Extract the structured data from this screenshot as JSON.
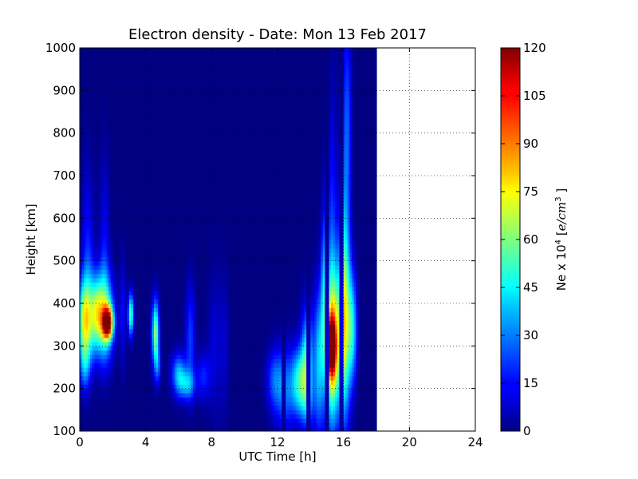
{
  "chart_data": {
    "type": "heatmap",
    "title": "Electron density - Date: Mon 13 Feb 2017",
    "xlabel": "UTC Time [h]",
    "ylabel": "Height [km]",
    "xlim": [
      0,
      24
    ],
    "ylim": [
      100,
      1000
    ],
    "x_ticks": [
      0,
      4,
      8,
      12,
      16,
      20,
      24
    ],
    "y_ticks": [
      100,
      200,
      300,
      400,
      500,
      600,
      700,
      800,
      900,
      1000
    ],
    "data_extent_x": [
      0,
      18
    ],
    "grid": true,
    "colormap": "jet",
    "colorbar": {
      "label_prefix": "Ne x 10",
      "label_exponent": "4",
      "label_units_open": "[",
      "label_units": "e/cm",
      "label_units_exponent": "3",
      "label_units_close": "]",
      "range": [
        0,
        120
      ],
      "ticks": [
        0,
        15,
        30,
        45,
        60,
        75,
        90,
        105,
        120
      ]
    },
    "density_blobs": [
      {
        "t": 0.35,
        "h": 360,
        "dt": 0.35,
        "dh": 70,
        "ne": 70
      },
      {
        "t": 0.5,
        "h": 500,
        "dt": 0.25,
        "dh": 150,
        "ne": 18
      },
      {
        "t": 1.05,
        "h": 380,
        "dt": 0.25,
        "dh": 60,
        "ne": 48
      },
      {
        "t": 1.7,
        "h": 355,
        "dt": 0.22,
        "dh": 25,
        "ne": 100
      },
      {
        "t": 1.55,
        "h": 370,
        "dt": 0.35,
        "dh": 70,
        "ne": 55
      },
      {
        "t": 1.5,
        "h": 520,
        "dt": 0.2,
        "dh": 150,
        "ne": 15
      },
      {
        "t": 0.3,
        "h": 250,
        "dt": 0.2,
        "dh": 40,
        "ne": 20
      },
      {
        "t": 2.6,
        "h": 380,
        "dt": 0.12,
        "dh": 90,
        "ne": 15
      },
      {
        "t": 3.1,
        "h": 375,
        "dt": 0.12,
        "dh": 35,
        "ne": 55
      },
      {
        "t": 4.6,
        "h": 330,
        "dt": 0.15,
        "dh": 55,
        "ne": 62
      },
      {
        "t": 4.75,
        "h": 250,
        "dt": 0.12,
        "dh": 30,
        "ne": 20
      },
      {
        "t": 6.0,
        "h": 235,
        "dt": 0.3,
        "dh": 35,
        "ne": 35
      },
      {
        "t": 6.5,
        "h": 210,
        "dt": 0.35,
        "dh": 25,
        "ne": 30
      },
      {
        "t": 6.7,
        "h": 320,
        "dt": 0.2,
        "dh": 90,
        "ne": 22
      },
      {
        "t": 7.5,
        "h": 230,
        "dt": 0.3,
        "dh": 40,
        "ne": 18
      },
      {
        "t": 8.2,
        "h": 300,
        "dt": 0.3,
        "dh": 120,
        "ne": 10
      },
      {
        "t": 8.8,
        "h": 300,
        "dt": 0.2,
        "dh": 120,
        "ne": 8
      },
      {
        "t": 11.8,
        "h": 220,
        "dt": 0.35,
        "dh": 50,
        "ne": 22
      },
      {
        "t": 12.4,
        "h": 200,
        "dt": 0.4,
        "dh": 70,
        "ne": 25
      },
      {
        "t": 13.3,
        "h": 230,
        "dt": 0.35,
        "dh": 50,
        "ne": 40
      },
      {
        "t": 13.8,
        "h": 260,
        "dt": 0.25,
        "dh": 90,
        "ne": 48
      },
      {
        "t": 13.5,
        "h": 170,
        "dt": 0.5,
        "dh": 40,
        "ne": 18
      },
      {
        "t": 14.5,
        "h": 270,
        "dt": 0.2,
        "dh": 120,
        "ne": 38
      },
      {
        "t": 14.8,
        "h": 420,
        "dt": 0.12,
        "dh": 150,
        "ne": 32
      },
      {
        "t": 15.3,
        "h": 300,
        "dt": 0.3,
        "dh": 120,
        "ne": 72
      },
      {
        "t": 15.3,
        "h": 300,
        "dt": 0.18,
        "dh": 45,
        "ne": 85
      },
      {
        "t": 15.3,
        "h": 500,
        "dt": 0.2,
        "dh": 250,
        "ne": 22
      },
      {
        "t": 16.0,
        "h": 350,
        "dt": 0.28,
        "dh": 140,
        "ne": 62
      },
      {
        "t": 16.1,
        "h": 600,
        "dt": 0.22,
        "dh": 300,
        "ne": 25
      },
      {
        "t": 16.55,
        "h": 340,
        "dt": 0.2,
        "dh": 90,
        "ne": 40
      },
      {
        "t": 16.3,
        "h": 850,
        "dt": 0.15,
        "dh": 150,
        "ne": 12
      }
    ],
    "dark_columns": [
      12.4,
      13.9,
      15.0,
      15.9
    ]
  }
}
